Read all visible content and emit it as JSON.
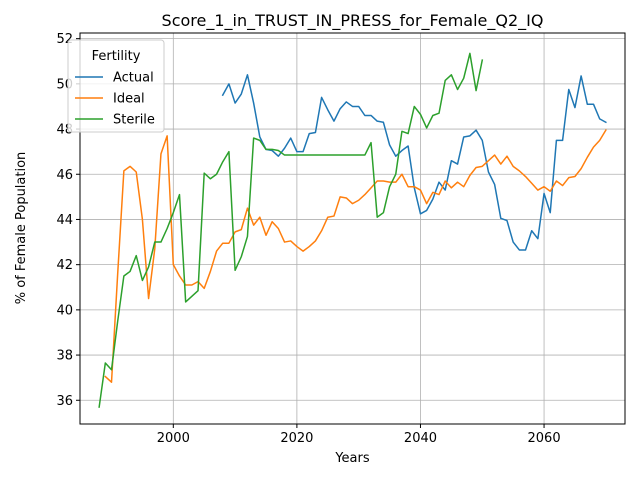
{
  "chart_data": {
    "type": "line",
    "title": "Score_1_in_TRUST_IN_PRESS_for_Female_Q2_IQ",
    "xlabel": "Years",
    "ylabel": "% of Female Population",
    "xlim": [
      1984.9,
      2073.1
    ],
    "ylim": [
      34.95,
      52.25
    ],
    "xticks": [
      2000,
      2020,
      2040,
      2060
    ],
    "yticks": [
      36,
      38,
      40,
      42,
      44,
      46,
      48,
      50,
      52
    ],
    "grid": true,
    "legend": {
      "title": "Fertility",
      "position": "upper-left"
    },
    "series": [
      {
        "name": "Actual",
        "color": "#1f77b4",
        "x": [
          2008,
          2009,
          2010,
          2011,
          2012,
          2013,
          2014,
          2015,
          2016,
          2017,
          2018,
          2019,
          2020,
          2021,
          2022,
          2023,
          2024,
          2025,
          2026,
          2027,
          2028,
          2029,
          2030,
          2031,
          2032,
          2033,
          2034,
          2035,
          2036,
          2037,
          2038,
          2039,
          2040,
          2041,
          2042,
          2043,
          2044,
          2045,
          2046,
          2047,
          2048,
          2049,
          2050,
          2051,
          2052,
          2053,
          2054,
          2055,
          2056,
          2057,
          2058,
          2059,
          2060,
          2061,
          2062,
          2063,
          2064,
          2065,
          2066,
          2067,
          2068,
          2069,
          2070
        ],
        "y": [
          49.5,
          50.0,
          49.15,
          49.55,
          50.4,
          49.15,
          47.65,
          47.1,
          47.05,
          46.8,
          47.15,
          47.6,
          47.0,
          47.0,
          47.8,
          47.85,
          49.4,
          48.85,
          48.35,
          48.9,
          49.2,
          49.0,
          49.0,
          48.6,
          48.6,
          48.35,
          48.3,
          47.3,
          46.8,
          47.05,
          47.25,
          45.4,
          44.25,
          44.4,
          44.9,
          45.65,
          45.3,
          46.6,
          46.45,
          47.65,
          47.7,
          47.95,
          47.5,
          46.1,
          45.55,
          44.05,
          43.95,
          43.0,
          42.65,
          42.65,
          43.5,
          43.15,
          45.15,
          44.3,
          47.5,
          47.5,
          49.75,
          48.95,
          50.35,
          49.1,
          49.1,
          48.45,
          48.3
        ]
      },
      {
        "name": "Ideal",
        "color": "#ff7f0e",
        "x": [
          1989,
          1990,
          1991,
          1992,
          1993,
          1994,
          1995,
          1996,
          1997,
          1998,
          1999,
          2000,
          2001,
          2002,
          2003,
          2004,
          2005,
          2006,
          2007,
          2008,
          2009,
          2010,
          2011,
          2012,
          2013,
          2014,
          2015,
          2016,
          2017,
          2018,
          2019,
          2020,
          2021,
          2022,
          2023,
          2024,
          2025,
          2026,
          2027,
          2028,
          2029,
          2030,
          2031,
          2032,
          2033,
          2034,
          2035,
          2036,
          2037,
          2038,
          2039,
          2040,
          2041,
          2042,
          2043,
          2044,
          2045,
          2046,
          2047,
          2048,
          2049,
          2050,
          2051,
          2052,
          2053,
          2054,
          2055,
          2056,
          2057,
          2058,
          2059,
          2060,
          2061,
          2062,
          2063,
          2064,
          2065,
          2066,
          2067,
          2068,
          2069,
          2070
        ],
        "y": [
          37.05,
          36.8,
          41.6,
          46.15,
          46.35,
          46.1,
          44.0,
          40.5,
          42.7,
          46.9,
          47.7,
          42.0,
          41.5,
          41.1,
          41.1,
          41.25,
          40.95,
          41.7,
          42.6,
          42.95,
          42.95,
          43.45,
          43.55,
          44.5,
          43.75,
          44.1,
          43.3,
          43.9,
          43.6,
          43.0,
          43.05,
          42.8,
          42.6,
          42.8,
          43.05,
          43.5,
          44.1,
          44.15,
          45.0,
          44.95,
          44.7,
          44.85,
          45.1,
          45.4,
          45.7,
          45.7,
          45.65,
          45.65,
          46.0,
          45.45,
          45.45,
          45.3,
          44.7,
          45.2,
          45.1,
          45.7,
          45.4,
          45.65,
          45.45,
          45.95,
          46.3,
          46.35,
          46.6,
          46.85,
          46.45,
          46.8,
          46.35,
          46.15,
          45.9,
          45.6,
          45.3,
          45.45,
          45.25,
          45.7,
          45.5,
          45.85,
          45.9,
          46.25,
          46.75,
          47.2,
          47.5,
          47.95
        ]
      },
      {
        "name": "Sterile",
        "color": "#2ca02c",
        "x": [
          1988,
          1989,
          1990,
          1991,
          1992,
          1993,
          1994,
          1995,
          1996,
          1997,
          1998,
          1999,
          2000,
          2001,
          2002,
          2003,
          2004,
          2005,
          2006,
          2007,
          2008,
          2009,
          2010,
          2011,
          2012,
          2013,
          2014,
          2015,
          2016,
          2017,
          2018,
          2019,
          2020,
          2021,
          2022,
          2023,
          2024,
          2025,
          2026,
          2027,
          2028,
          2029,
          2030,
          2031,
          2032,
          2033,
          2034,
          2035,
          2036,
          2037,
          2038,
          2039,
          2040,
          2041,
          2042,
          2043,
          2044,
          2045,
          2046,
          2047,
          2048,
          2049,
          2050
        ],
        "y": [
          35.7,
          37.65,
          37.35,
          39.5,
          41.5,
          41.7,
          42.4,
          41.3,
          41.9,
          43.0,
          43.0,
          43.6,
          44.3,
          45.1,
          40.35,
          40.6,
          40.85,
          46.05,
          45.8,
          46.0,
          46.55,
          47.0,
          41.75,
          42.35,
          43.25,
          47.6,
          47.5,
          47.1,
          47.1,
          47.05,
          46.85,
          46.85,
          46.85,
          46.85,
          46.85,
          46.85,
          46.85,
          46.85,
          46.85,
          46.85,
          46.85,
          46.85,
          46.85,
          46.85,
          47.4,
          44.1,
          44.3,
          45.45,
          46.0,
          47.9,
          47.8,
          49.0,
          48.65,
          48.05,
          48.6,
          48.7,
          50.15,
          50.4,
          49.75,
          50.25,
          51.35,
          49.7,
          51.05
        ]
      }
    ]
  }
}
